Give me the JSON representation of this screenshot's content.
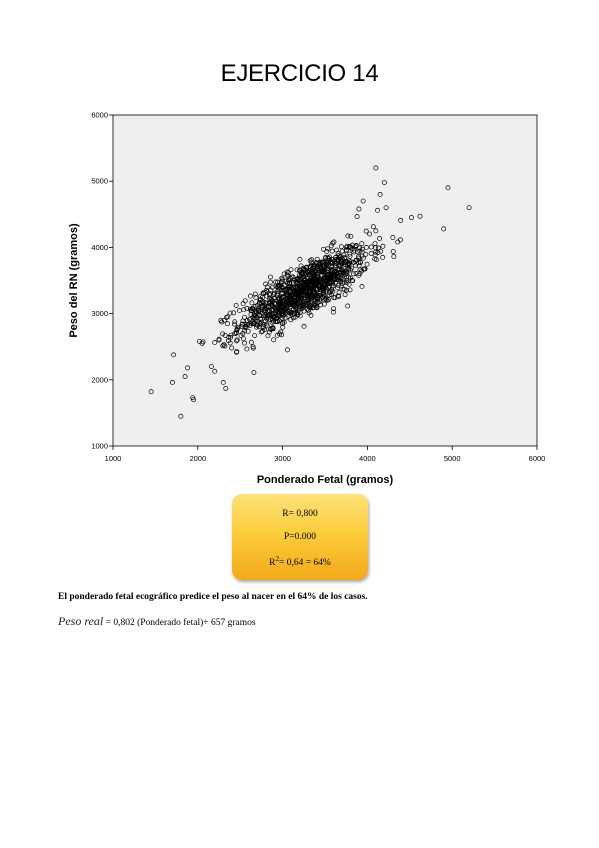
{
  "title": "EJERCICIO 14",
  "chart_data": {
    "type": "scatter",
    "xlabel": "Ponderado Fetal (gramos)",
    "ylabel": "Peso del RN (gramos)",
    "xlim": [
      1000,
      6000
    ],
    "ylim": [
      1000,
      6000
    ],
    "xticks": [
      "1000",
      "2000",
      "3000",
      "4000",
      "5000",
      "6000"
    ],
    "yticks": [
      "1000",
      "2000",
      "3000",
      "4000",
      "5000",
      "6000"
    ],
    "grid": false,
    "background": "#efefef",
    "point_style": "open-circle",
    "points": [
      [
        1450,
        1820
      ],
      [
        1700,
        1960
      ],
      [
        1800,
        1450
      ],
      [
        1850,
        2050
      ],
      [
        1880,
        2180
      ],
      [
        1940,
        1730
      ],
      [
        1950,
        1700
      ],
      [
        2020,
        2580
      ],
      [
        2050,
        2550
      ],
      [
        2160,
        2200
      ],
      [
        2200,
        2130
      ],
      [
        2300,
        1960
      ],
      [
        2330,
        1870
      ],
      [
        2250,
        2600
      ],
      [
        2400,
        2480
      ],
      [
        4100,
        5200
      ],
      [
        4150,
        4800
      ],
      [
        4200,
        4980
      ],
      [
        4950,
        4900
      ],
      [
        5200,
        4600
      ],
      [
        4900,
        4280
      ],
      [
        4520,
        4450
      ],
      [
        4620,
        4470
      ],
      [
        4220,
        4600
      ],
      [
        4120,
        4560
      ],
      [
        3900,
        4580
      ],
      [
        3950,
        4700
      ],
      [
        4300,
        4150
      ],
      [
        4180,
        3850
      ],
      [
        4100,
        4250
      ]
    ],
    "dense_cluster": {
      "center": [
        3250,
        3350
      ],
      "n": 1100,
      "x_sd": 380,
      "r": 0.8,
      "y_sd": 330
    }
  },
  "stats": {
    "r": "R= 0,800",
    "p": "P=0.000",
    "r2_prefix": "R",
    "r2_sup": "2",
    "r2_suffix": "= 0,64 = 64%"
  },
  "note": "El ponderado fetal ecográfico predice el peso al nacer en el 64% de los casos.",
  "formula": {
    "variable": "Peso real",
    "expression": "= 0,802 (Ponderado fetal)+ 657 gramos"
  }
}
